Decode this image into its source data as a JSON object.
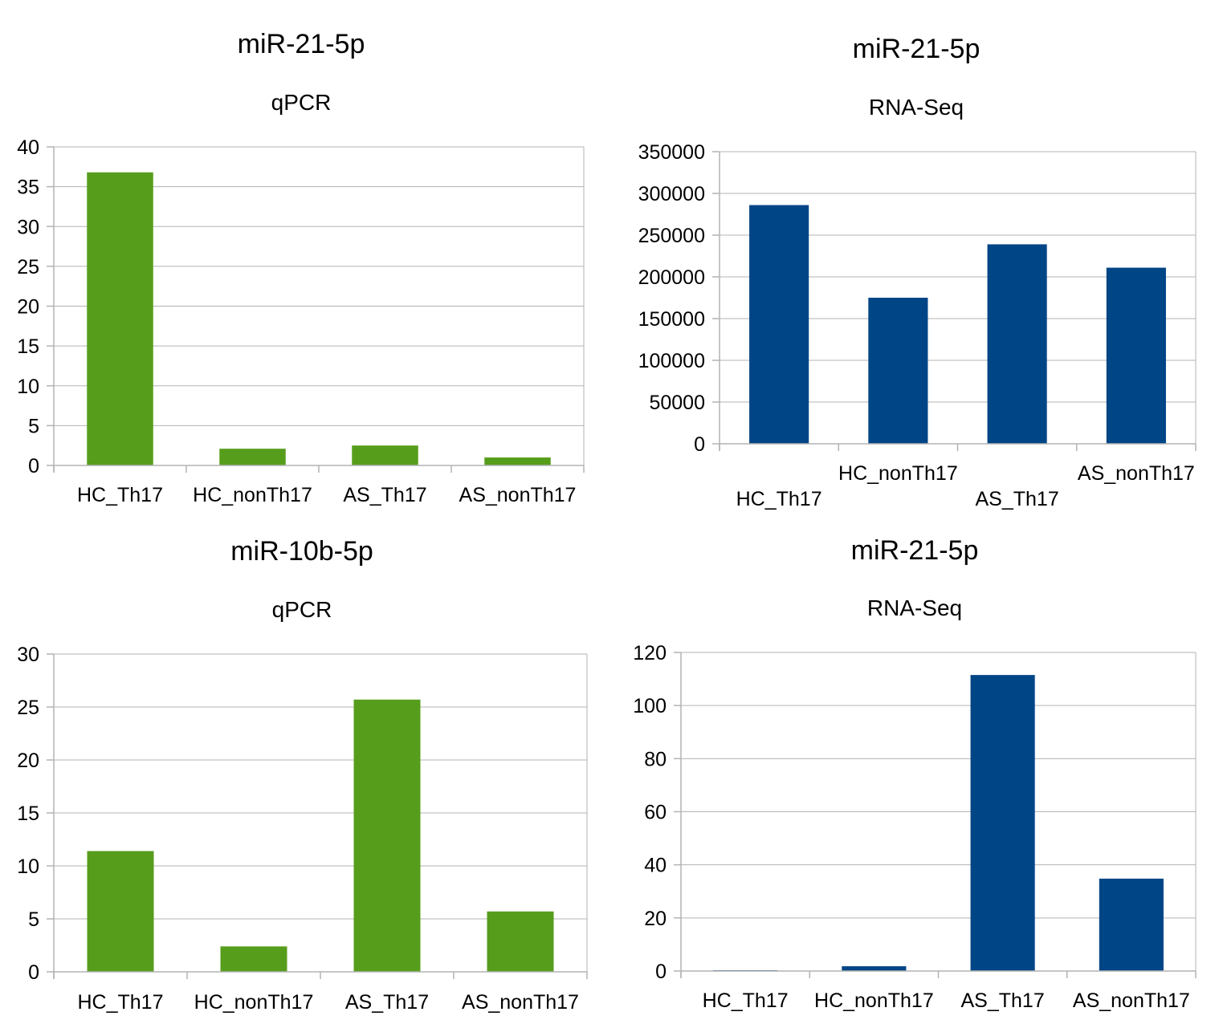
{
  "colors": {
    "qpcr": "#579d1c",
    "rnaseq": "#004586"
  },
  "chart_data": [
    {
      "type": "bar",
      "title": "miR-21-5p",
      "subtitle": "qPCR",
      "categories": [
        "HC_Th17",
        "HC_nonTh17",
        "AS_Th17",
        "AS_nonTh17"
      ],
      "values": [
        36.8,
        2.1,
        2.5,
        1.0
      ],
      "ylim": [
        0,
        40
      ],
      "yticks": [
        0,
        5,
        10,
        15,
        20,
        25,
        30,
        35,
        40
      ],
      "ytick_labels": [
        "0",
        "5",
        "10",
        "15",
        "20",
        "25",
        "30",
        "35",
        "40"
      ],
      "color": "#579d1c",
      "grid": true
    },
    {
      "type": "bar",
      "title": "miR-21-5p",
      "subtitle": "RNA-Seq",
      "categories": [
        "HC_Th17",
        "HC_nonTh17",
        "AS_Th17",
        "AS_nonTh17"
      ],
      "values": [
        286000,
        175000,
        239000,
        211000
      ],
      "ylim": [
        0,
        350000
      ],
      "yticks": [
        0,
        50000,
        100000,
        150000,
        200000,
        250000,
        300000,
        350000
      ],
      "ytick_labels": [
        "0",
        "50000",
        "100000",
        "150000",
        "200000",
        "250000",
        "300000",
        "350000"
      ],
      "color": "#004586",
      "grid": true
    },
    {
      "type": "bar",
      "title": "miR-10b-5p",
      "subtitle": "qPCR",
      "categories": [
        "HC_Th17",
        "HC_nonTh17",
        "AS_Th17",
        "AS_nonTh17"
      ],
      "values": [
        11.4,
        2.4,
        25.7,
        5.7
      ],
      "ylim": [
        0,
        30
      ],
      "yticks": [
        0,
        5,
        10,
        15,
        20,
        25,
        30
      ],
      "ytick_labels": [
        "0",
        "5",
        "10",
        "15",
        "20",
        "25",
        "30"
      ],
      "color": "#579d1c",
      "grid": true
    },
    {
      "type": "bar",
      "title": "miR-21-5p",
      "subtitle": "RNA-Seq",
      "categories": [
        "HC_Th17",
        "HC_nonTh17",
        "AS_Th17",
        "AS_nonTh17"
      ],
      "values": [
        0.3,
        1.8,
        111.5,
        34.8
      ],
      "ylim": [
        0,
        120
      ],
      "yticks": [
        0,
        20,
        40,
        60,
        80,
        100,
        120
      ],
      "ytick_labels": [
        "0",
        "20",
        "40",
        "60",
        "80",
        "100",
        "120"
      ],
      "color": "#004586",
      "grid": true
    }
  ]
}
